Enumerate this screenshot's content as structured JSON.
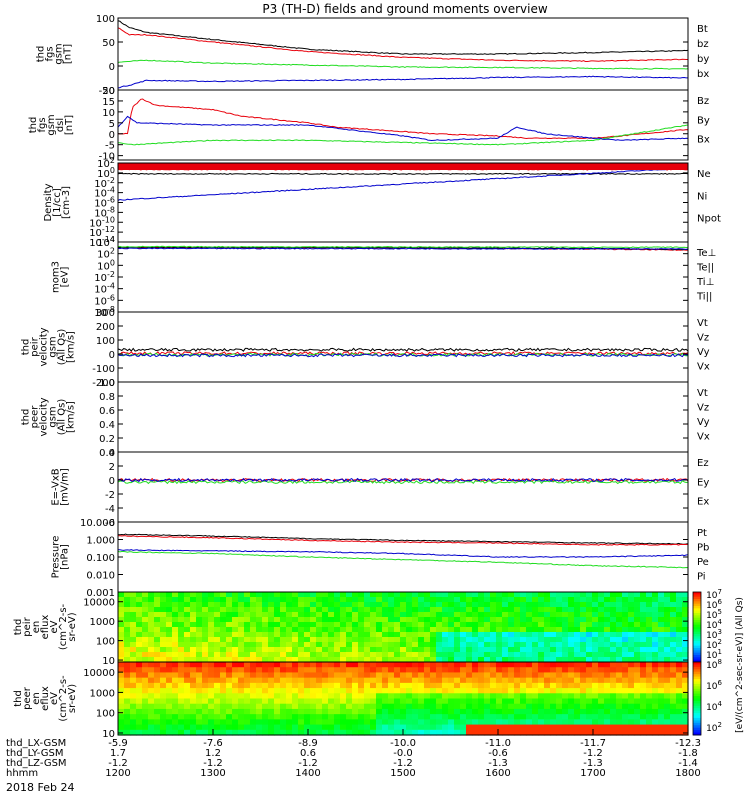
{
  "title": "P3 (TH-D) fields and ground moments overview",
  "date_label": "2018 Feb 24",
  "colors": {
    "black": "#000000",
    "red": "#e8000b",
    "green": "#22dd22",
    "blue": "#0000cc"
  },
  "xaxis": {
    "hhmm": [
      1200,
      1300,
      1400,
      1500,
      1600,
      1700,
      1800
    ],
    "rows": [
      {
        "label": "thd_LX-GSM",
        "values": [
          "-5.9",
          "-7.6",
          "-8.9",
          "-10.0",
          "-11.0",
          "-11.7",
          "-12.3"
        ]
      },
      {
        "label": "thd_LY-GSM",
        "values": [
          "1.7",
          "1.2",
          "0.6",
          "-0.0",
          "-0.6",
          "-1.2",
          "-1.8"
        ]
      },
      {
        "label": "thd_LZ-GSM",
        "values": [
          "-1.2",
          "-1.2",
          "-1.2",
          "-1.2",
          "-1.3",
          "-1.3",
          "-1.4"
        ]
      },
      {
        "label": "hhmm",
        "values": [
          "1200",
          "1300",
          "1400",
          "1500",
          "1600",
          "1700",
          "1800"
        ]
      }
    ]
  },
  "chart_data": [
    {
      "type": "line",
      "id": "fgs_gsm",
      "ylabel_lines": [
        "thd",
        "fgs",
        "gsm",
        "[nT]"
      ],
      "ylim": [
        -50,
        100
      ],
      "ticks": [
        "100",
        "50",
        "0",
        "-50"
      ],
      "tick_vals": [
        100,
        50,
        0,
        -50
      ],
      "series": [
        {
          "name": "Bt",
          "color": "black",
          "x": [
            1200,
            1212,
            1230,
            1300,
            1400,
            1500,
            1600,
            1700,
            1800
          ],
          "y": [
            95,
            80,
            70,
            55,
            35,
            25,
            25,
            28,
            32
          ]
        },
        {
          "name": "bz",
          "color": "red",
          "x": [
            1200,
            1212,
            1230,
            1300,
            1400,
            1500,
            1600,
            1700,
            1800
          ],
          "y": [
            80,
            65,
            65,
            50,
            30,
            18,
            12,
            10,
            14
          ]
        },
        {
          "name": "by",
          "color": "green",
          "x": [
            1200,
            1230,
            1300,
            1400,
            1500,
            1600,
            1700,
            1800
          ],
          "y": [
            8,
            12,
            6,
            2,
            -2,
            -3,
            -5,
            -6
          ]
        },
        {
          "name": "bx",
          "color": "blue",
          "x": [
            1200,
            1212,
            1230,
            1300,
            1400,
            1500,
            1600,
            1700,
            1800
          ],
          "y": [
            -45,
            -40,
            -30,
            -32,
            -30,
            -28,
            -24,
            -22,
            -25
          ]
        }
      ]
    },
    {
      "type": "line",
      "id": "fgs_dsl",
      "ylabel_lines": [
        "thd",
        "fgs",
        "gsm",
        "dsl",
        "[nT]"
      ],
      "ylim": [
        -12,
        20
      ],
      "ticks": [
        "20",
        "15",
        "10",
        "5",
        "0",
        "-5",
        "-10"
      ],
      "tick_vals": [
        20,
        15,
        10,
        5,
        0,
        -5,
        -10
      ],
      "series": [
        {
          "name": "Bz",
          "color": "red",
          "x": [
            1200,
            1210,
            1215,
            1225,
            1240,
            1300,
            1330,
            1400,
            1430,
            1500,
            1530,
            1600,
            1630,
            1700,
            1730,
            1800
          ],
          "y": [
            0,
            0,
            12,
            16,
            13,
            11,
            8,
            5,
            3,
            1,
            0,
            -1,
            -2,
            -2,
            -1,
            2
          ]
        },
        {
          "name": "By",
          "color": "green",
          "x": [
            1200,
            1215,
            1300,
            1400,
            1500,
            1600,
            1700,
            1800
          ],
          "y": [
            -4,
            -5,
            -3,
            -3,
            -4,
            -5,
            -3,
            4
          ]
        },
        {
          "name": "Bx",
          "color": "blue",
          "x": [
            1200,
            1210,
            1220,
            1300,
            1400,
            1500,
            1530,
            1600,
            1620,
            1650,
            1700,
            1730,
            1800
          ],
          "y": [
            3,
            8,
            5,
            4,
            4,
            -1,
            -3,
            -2,
            3,
            0,
            -2,
            -3,
            -2
          ]
        }
      ]
    },
    {
      "type": "line",
      "id": "density",
      "ylabel_lines": [
        "Density",
        "[1/cc]",
        "[cm-3]"
      ],
      "log": true,
      "ylim": [
        -14,
        2
      ],
      "ticks": [
        "10^2",
        "10^0",
        "10^-2",
        "10^-4",
        "10^-6",
        "10^-8",
        "10^-10",
        "10^-12",
        "10^-14"
      ],
      "tick_vals": [
        2,
        0,
        -2,
        -4,
        -6,
        -8,
        -10,
        -12,
        -14
      ],
      "series": [
        {
          "name": "Ne",
          "color": "red",
          "x": [
            1200,
            1800
          ],
          "y": [
            1.1,
            1.1
          ]
        },
        {
          "name": "Ni",
          "color": "black",
          "x": [
            1200,
            1800
          ],
          "y": [
            -0.2,
            -0.2
          ]
        },
        {
          "name": "Npot",
          "color": "blue",
          "x": [
            1200,
            1800
          ],
          "y": [
            -5.5,
            1.0
          ]
        }
      ]
    },
    {
      "type": "line",
      "id": "mom_temp",
      "ylabel_lines": [
        "mom3",
        "[eV]"
      ],
      "log": true,
      "ylim": [
        -8,
        4
      ],
      "ticks": [
        "10^4",
        "10^2",
        "10^0",
        "10^-2",
        "10^-4",
        "10^-6",
        "10^-8"
      ],
      "tick_vals": [
        4,
        2,
        0,
        -2,
        -4,
        -6,
        -8
      ],
      "series": [
        {
          "name": "Te⊥",
          "color": "red",
          "x": [
            1200,
            1500,
            1700,
            1800
          ],
          "y": [
            3.0,
            3.0,
            2.8,
            2.6
          ]
        },
        {
          "name": "Te||",
          "color": "black",
          "x": [
            1200,
            1500,
            1700,
            1800
          ],
          "y": [
            3.1,
            3.0,
            2.9,
            2.7
          ]
        },
        {
          "name": "Ti⊥",
          "color": "green",
          "x": [
            1200,
            1800
          ],
          "y": [
            3.2,
            3.1
          ]
        },
        {
          "name": "Ti||",
          "color": "blue",
          "x": [
            1200,
            1800
          ],
          "y": [
            2.9,
            2.8
          ]
        }
      ]
    },
    {
      "type": "line",
      "id": "peir_velocity",
      "ylabel_lines": [
        "thd",
        "peir",
        "velocity",
        "gsm",
        "(All Qs)",
        "[km/s]"
      ],
      "ylim": [
        -200,
        300
      ],
      "ticks": [
        "300",
        "200",
        "100",
        "0",
        "-100",
        "-200"
      ],
      "tick_vals": [
        300,
        200,
        100,
        0,
        -100,
        -200
      ],
      "series": [
        {
          "name": "Vt",
          "color": "black",
          "x": [
            1200,
            1800
          ],
          "y": [
            30,
            30
          ]
        },
        {
          "name": "Vz",
          "color": "red",
          "x": [
            1200,
            1800
          ],
          "y": [
            5,
            5
          ]
        },
        {
          "name": "Vy",
          "color": "green",
          "x": [
            1200,
            1800
          ],
          "y": [
            -5,
            -5
          ]
        },
        {
          "name": "Vx",
          "color": "blue",
          "x": [
            1200,
            1800
          ],
          "y": [
            -10,
            -10
          ]
        }
      ]
    },
    {
      "type": "line",
      "id": "peer_velocity",
      "ylabel_lines": [
        "thd",
        "peer",
        "velocity",
        "gsm",
        "(All Qs)",
        "[km/s]"
      ],
      "ylim": [
        0,
        1
      ],
      "ticks": [
        "1.0",
        "0.8",
        "0.6",
        "0.4",
        "0.2",
        "0.0"
      ],
      "tick_vals": [
        1,
        0.8,
        0.6,
        0.4,
        0.2,
        0
      ],
      "series": [
        {
          "name": "Vt",
          "color": "black",
          "x": [],
          "y": []
        },
        {
          "name": "Vz",
          "color": "red",
          "x": [],
          "y": []
        },
        {
          "name": "Vy",
          "color": "green",
          "x": [],
          "y": []
        },
        {
          "name": "Vx",
          "color": "blue",
          "x": [],
          "y": []
        }
      ]
    },
    {
      "type": "line",
      "id": "efield",
      "ylabel_lines": [
        "E=-VxB",
        "[mV/m]"
      ],
      "ylim": [
        -6,
        4
      ],
      "ticks": [
        "4",
        "2",
        "0",
        "-2",
        "-4",
        "-6"
      ],
      "tick_vals": [
        4,
        2,
        0,
        -2,
        -4,
        -6
      ],
      "series": [
        {
          "name": "Ez",
          "color": "red",
          "x": [
            1200,
            1800
          ],
          "y": [
            0,
            0
          ]
        },
        {
          "name": "Ey",
          "color": "green",
          "x": [
            1200,
            1800
          ],
          "y": [
            -0.3,
            -0.3
          ]
        },
        {
          "name": "Ex",
          "color": "blue",
          "x": [
            1200,
            1800
          ],
          "y": [
            0,
            0
          ]
        }
      ]
    },
    {
      "type": "line",
      "id": "pressure",
      "ylabel_lines": [
        "Pressure",
        "[nPa]"
      ],
      "log": true,
      "ylim": [
        -3,
        1
      ],
      "ticks": [
        "10.000",
        "1.000",
        "0.100",
        "0.010",
        "0.001"
      ],
      "tick_vals": [
        1,
        0,
        -1,
        -2,
        -3
      ],
      "series": [
        {
          "name": "Pt",
          "color": "black",
          "x": [
            1200,
            1300,
            1400,
            1500,
            1600,
            1700,
            1800
          ],
          "y": [
            0.3,
            0.2,
            0.05,
            -0.05,
            -0.12,
            -0.2,
            -0.25
          ]
        },
        {
          "name": "Pb",
          "color": "red",
          "x": [
            1200,
            1300,
            1400,
            1500,
            1600,
            1700,
            1800
          ],
          "y": [
            0.2,
            0.1,
            -0.05,
            -0.15,
            -0.2,
            -0.3,
            -0.3
          ]
        },
        {
          "name": "Pe",
          "color": "green",
          "x": [
            1200,
            1300,
            1400,
            1500,
            1600,
            1700,
            1800
          ],
          "y": [
            -0.7,
            -0.8,
            -1.0,
            -1.15,
            -1.3,
            -1.5,
            -1.6
          ]
        },
        {
          "name": "Pi",
          "color": "blue",
          "x": [
            1200,
            1300,
            1400,
            1500,
            1600,
            1700,
            1800
          ],
          "y": [
            -0.6,
            -0.65,
            -0.7,
            -0.8,
            -1.0,
            -1.0,
            -0.9
          ]
        }
      ]
    },
    {
      "type": "heatmap",
      "id": "peir_spec",
      "ylabel_lines": [
        "thd",
        "peir",
        "en",
        "eflux",
        "eV",
        "(cm^2-s-",
        "sr-eV)"
      ],
      "ticks": [
        "10000",
        "1000",
        "100",
        "10"
      ],
      "tick_vals": [
        4,
        3,
        2,
        1
      ],
      "ylim": [
        0.9,
        4.5
      ],
      "colorbar_ticks": [
        "10^7",
        "10^6",
        "10^5",
        "10^4",
        "10^3",
        "10^2",
        "10^1"
      ],
      "zlim": [
        1,
        7
      ]
    },
    {
      "type": "heatmap",
      "id": "peer_spec",
      "ylabel_lines": [
        "thd",
        "peer",
        "en",
        "eflux",
        "eV",
        "(cm^2-s-",
        "sr-eV)"
      ],
      "ticks": [
        "10000",
        "1000",
        "100",
        "10"
      ],
      "tick_vals": [
        4,
        3,
        2,
        1
      ],
      "ylim": [
        0.9,
        4.5
      ],
      "colorbar_ticks": [
        "10^8",
        "10^6",
        "10^4",
        "10^2"
      ],
      "zlim": [
        1,
        9
      ]
    }
  ],
  "colorbar_label": "[eV/(cm^2-sec-sr-eV)] (All Qs)"
}
